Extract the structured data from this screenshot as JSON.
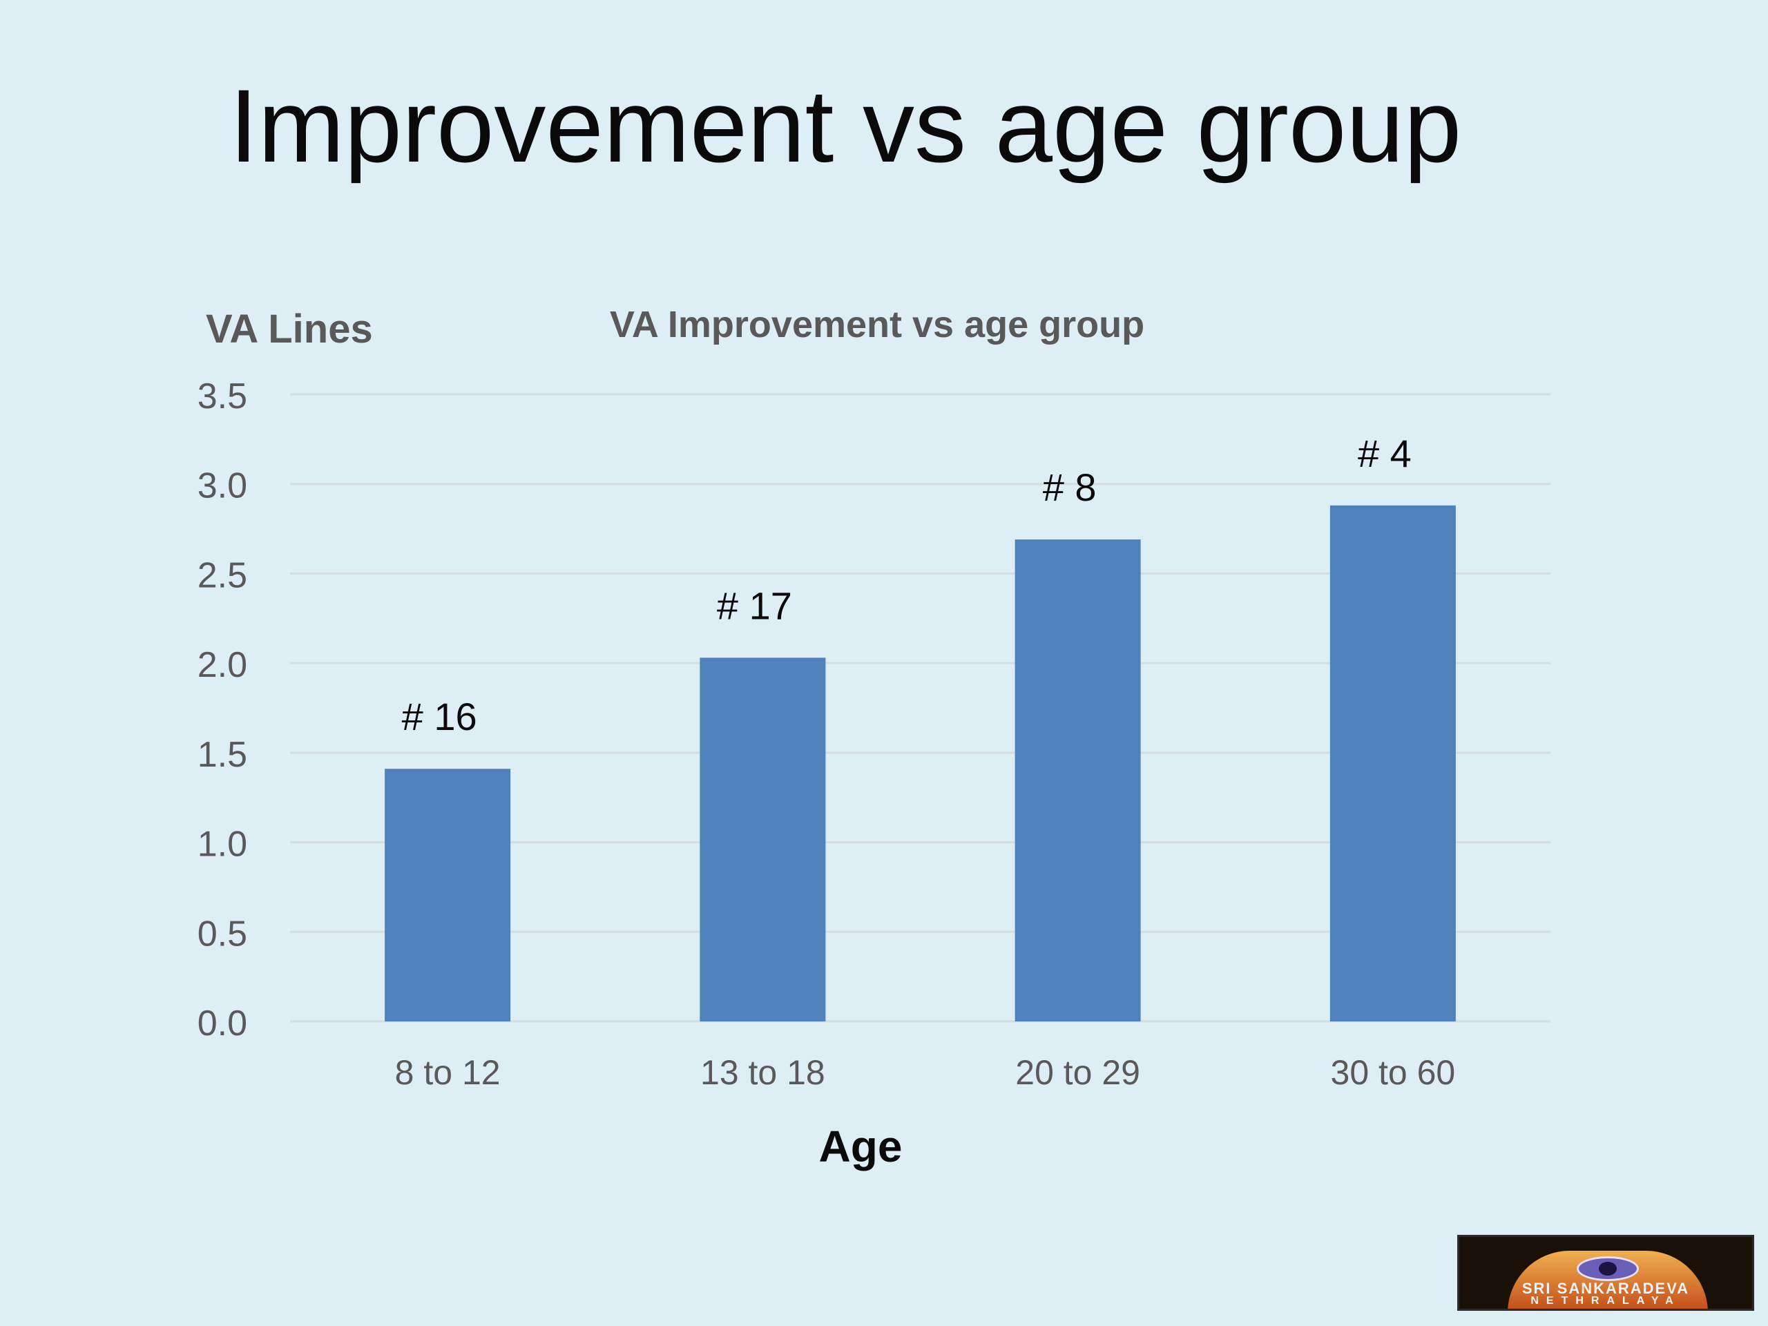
{
  "slide": {
    "title": "Improvement vs age group"
  },
  "logo": {
    "line1": "SRI SANKARADEVA",
    "line2": "NETHRALAYA"
  },
  "chart_data": {
    "type": "bar",
    "title": "VA Improvement vs age group",
    "xlabel": "Age",
    "ylabel": "VA Lines",
    "categories": [
      "8 to 12",
      "13 to 18",
      "20 to 29",
      "30 to 60"
    ],
    "values": [
      1.41,
      2.03,
      2.69,
      2.88
    ],
    "bar_labels": [
      "# 16",
      "# 17",
      "# 8",
      "# 4"
    ],
    "yticks": [
      "0.0",
      "0.5",
      "1.0",
      "1.5",
      "2.0",
      "2.5",
      "3.0",
      "3.5"
    ],
    "ylim": [
      0,
      3.5
    ],
    "ystep": 0.5,
    "grid": true,
    "legend": "none",
    "colors": {
      "bar": "#4f81bd",
      "grid": "#d3dde2",
      "axis_text": "#595959",
      "title_text": "#595959",
      "label_text": "#0a0a0a"
    }
  }
}
